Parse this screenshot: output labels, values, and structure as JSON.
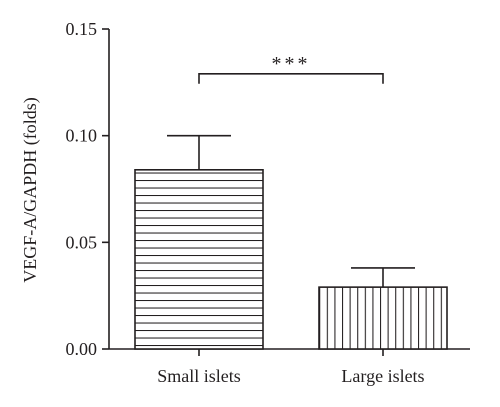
{
  "chart_data": {
    "type": "bar",
    "ylabel": "VEGF-A/GAPDH (folds)",
    "xlabel": "",
    "ylim": [
      0,
      0.15
    ],
    "yticks": [
      0.0,
      0.05,
      0.1,
      0.15
    ],
    "ytick_labels": [
      "0.00",
      "0.05",
      "0.10",
      "0.15"
    ],
    "categories": [
      "Small islets",
      "Large islets"
    ],
    "values": [
      0.084,
      0.029
    ],
    "error_upper": [
      0.016,
      0.009
    ],
    "bar_patterns": [
      "horizontal-lines",
      "vertical-lines"
    ],
    "significance": {
      "between": [
        0,
        1
      ],
      "label": "***",
      "y": 0.129
    },
    "grid": false,
    "colors": {
      "ink": "#231f20",
      "bar_fill": "#ffffff"
    }
  }
}
